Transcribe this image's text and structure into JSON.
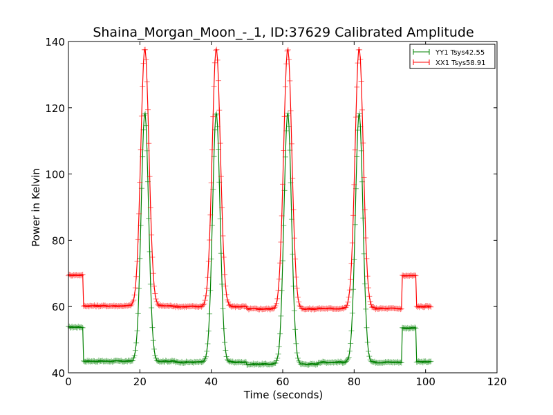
{
  "chart_data": {
    "type": "line",
    "title": "Shaina_Morgan_Moon_-_1, ID:37629 Calibrated Amplitude",
    "xlabel": "Time (seconds)",
    "ylabel": "Power in Kelvin",
    "xlim": [
      0,
      120
    ],
    "ylim": [
      40,
      140
    ],
    "xticks": [
      0,
      20,
      40,
      60,
      80,
      100,
      120
    ],
    "yticks": [
      40,
      60,
      80,
      100,
      120,
      140
    ],
    "xtick_labels": [
      "0",
      "20",
      "40",
      "60",
      "80",
      "100",
      "120"
    ],
    "ytick_labels": [
      "40",
      "60",
      "80",
      "100",
      "120",
      "140"
    ],
    "grid": false,
    "legend_position": "top-right",
    "marker": "+",
    "sample_step": 0.25,
    "series": [
      {
        "name": "YY1 Tsys42.55",
        "color": "#008000",
        "t_end": 101.5,
        "baseline": [
          {
            "from": 0,
            "to": 4.25,
            "value": 53.8
          },
          {
            "from": 4.25,
            "to": 30,
            "value": 43.5
          },
          {
            "from": 30,
            "to": 50,
            "value": 43.2
          },
          {
            "from": 50,
            "to": 70,
            "value": 42.6
          },
          {
            "from": 70,
            "to": 93.5,
            "value": 43.2
          },
          {
            "from": 93.5,
            "to": 97.5,
            "value": 53.5
          },
          {
            "from": 97.5,
            "to": 101.5,
            "value": 43.3
          }
        ],
        "peaks": [
          {
            "center": 21.4,
            "height": 118.5,
            "width": 1.05
          },
          {
            "center": 41.4,
            "height": 118.5,
            "width": 1.05
          },
          {
            "center": 61.4,
            "height": 118.5,
            "width": 1.05
          },
          {
            "center": 81.4,
            "height": 118.5,
            "width": 1.05
          }
        ]
      },
      {
        "name": "XX1 Tsys58.91",
        "color": "#ff0000",
        "t_end": 101.5,
        "baseline": [
          {
            "from": 0,
            "to": 4.25,
            "value": 69.5
          },
          {
            "from": 4.25,
            "to": 30,
            "value": 60.2
          },
          {
            "from": 30,
            "to": 50,
            "value": 60.0
          },
          {
            "from": 50,
            "to": 70,
            "value": 59.3
          },
          {
            "from": 70,
            "to": 93.5,
            "value": 59.4
          },
          {
            "from": 93.5,
            "to": 97.5,
            "value": 69.3
          },
          {
            "from": 97.5,
            "to": 101.5,
            "value": 60.0
          }
        ],
        "peaks": [
          {
            "center": 21.4,
            "height": 138,
            "width": 1.15
          },
          {
            "center": 41.4,
            "height": 138,
            "width": 1.15
          },
          {
            "center": 61.4,
            "height": 138,
            "width": 1.15
          },
          {
            "center": 81.4,
            "height": 138,
            "width": 1.15
          }
        ]
      }
    ]
  }
}
